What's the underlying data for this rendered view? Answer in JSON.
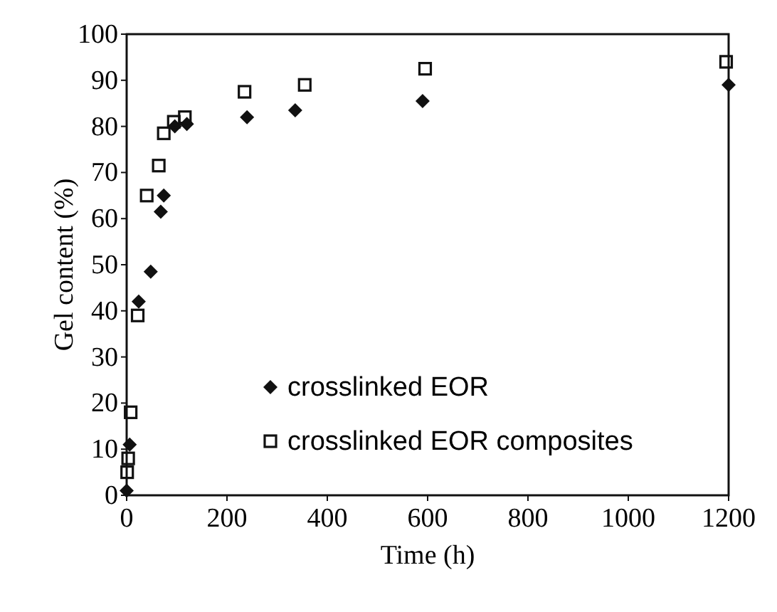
{
  "chart_data": {
    "type": "scatter",
    "xlabel": "Time (h)",
    "ylabel": "Gel content (%)",
    "xlim": [
      0,
      1200
    ],
    "xticks": [
      0,
      200,
      400,
      600,
      800,
      1000,
      1200
    ],
    "ylim": [
      0,
      100
    ],
    "yticks": [
      0,
      10,
      20,
      30,
      40,
      50,
      60,
      70,
      80,
      90,
      100
    ],
    "grid": false,
    "legend": "bottom",
    "series": [
      {
        "name": "crosslinked EOR",
        "color": "#111111",
        "marker": "diamond",
        "x": [
          0,
          6,
          24,
          48,
          68,
          74,
          96,
          120,
          240,
          336,
          590,
          1200
        ],
        "values": [
          1,
          11,
          42,
          48.5,
          61.5,
          65,
          80,
          80.5,
          82,
          83.5,
          85.5,
          89
        ]
      },
      {
        "name": "crosslinked EOR composites",
        "color": "#111111",
        "marker": "square",
        "x": [
          1,
          3,
          8,
          22,
          40,
          64,
          74,
          94,
          116,
          235,
          355,
          595,
          1195
        ],
        "values": [
          5,
          8,
          18,
          39,
          65,
          71.5,
          78.5,
          81,
          82,
          87.5,
          89,
          92.5,
          94
        ]
      }
    ]
  }
}
